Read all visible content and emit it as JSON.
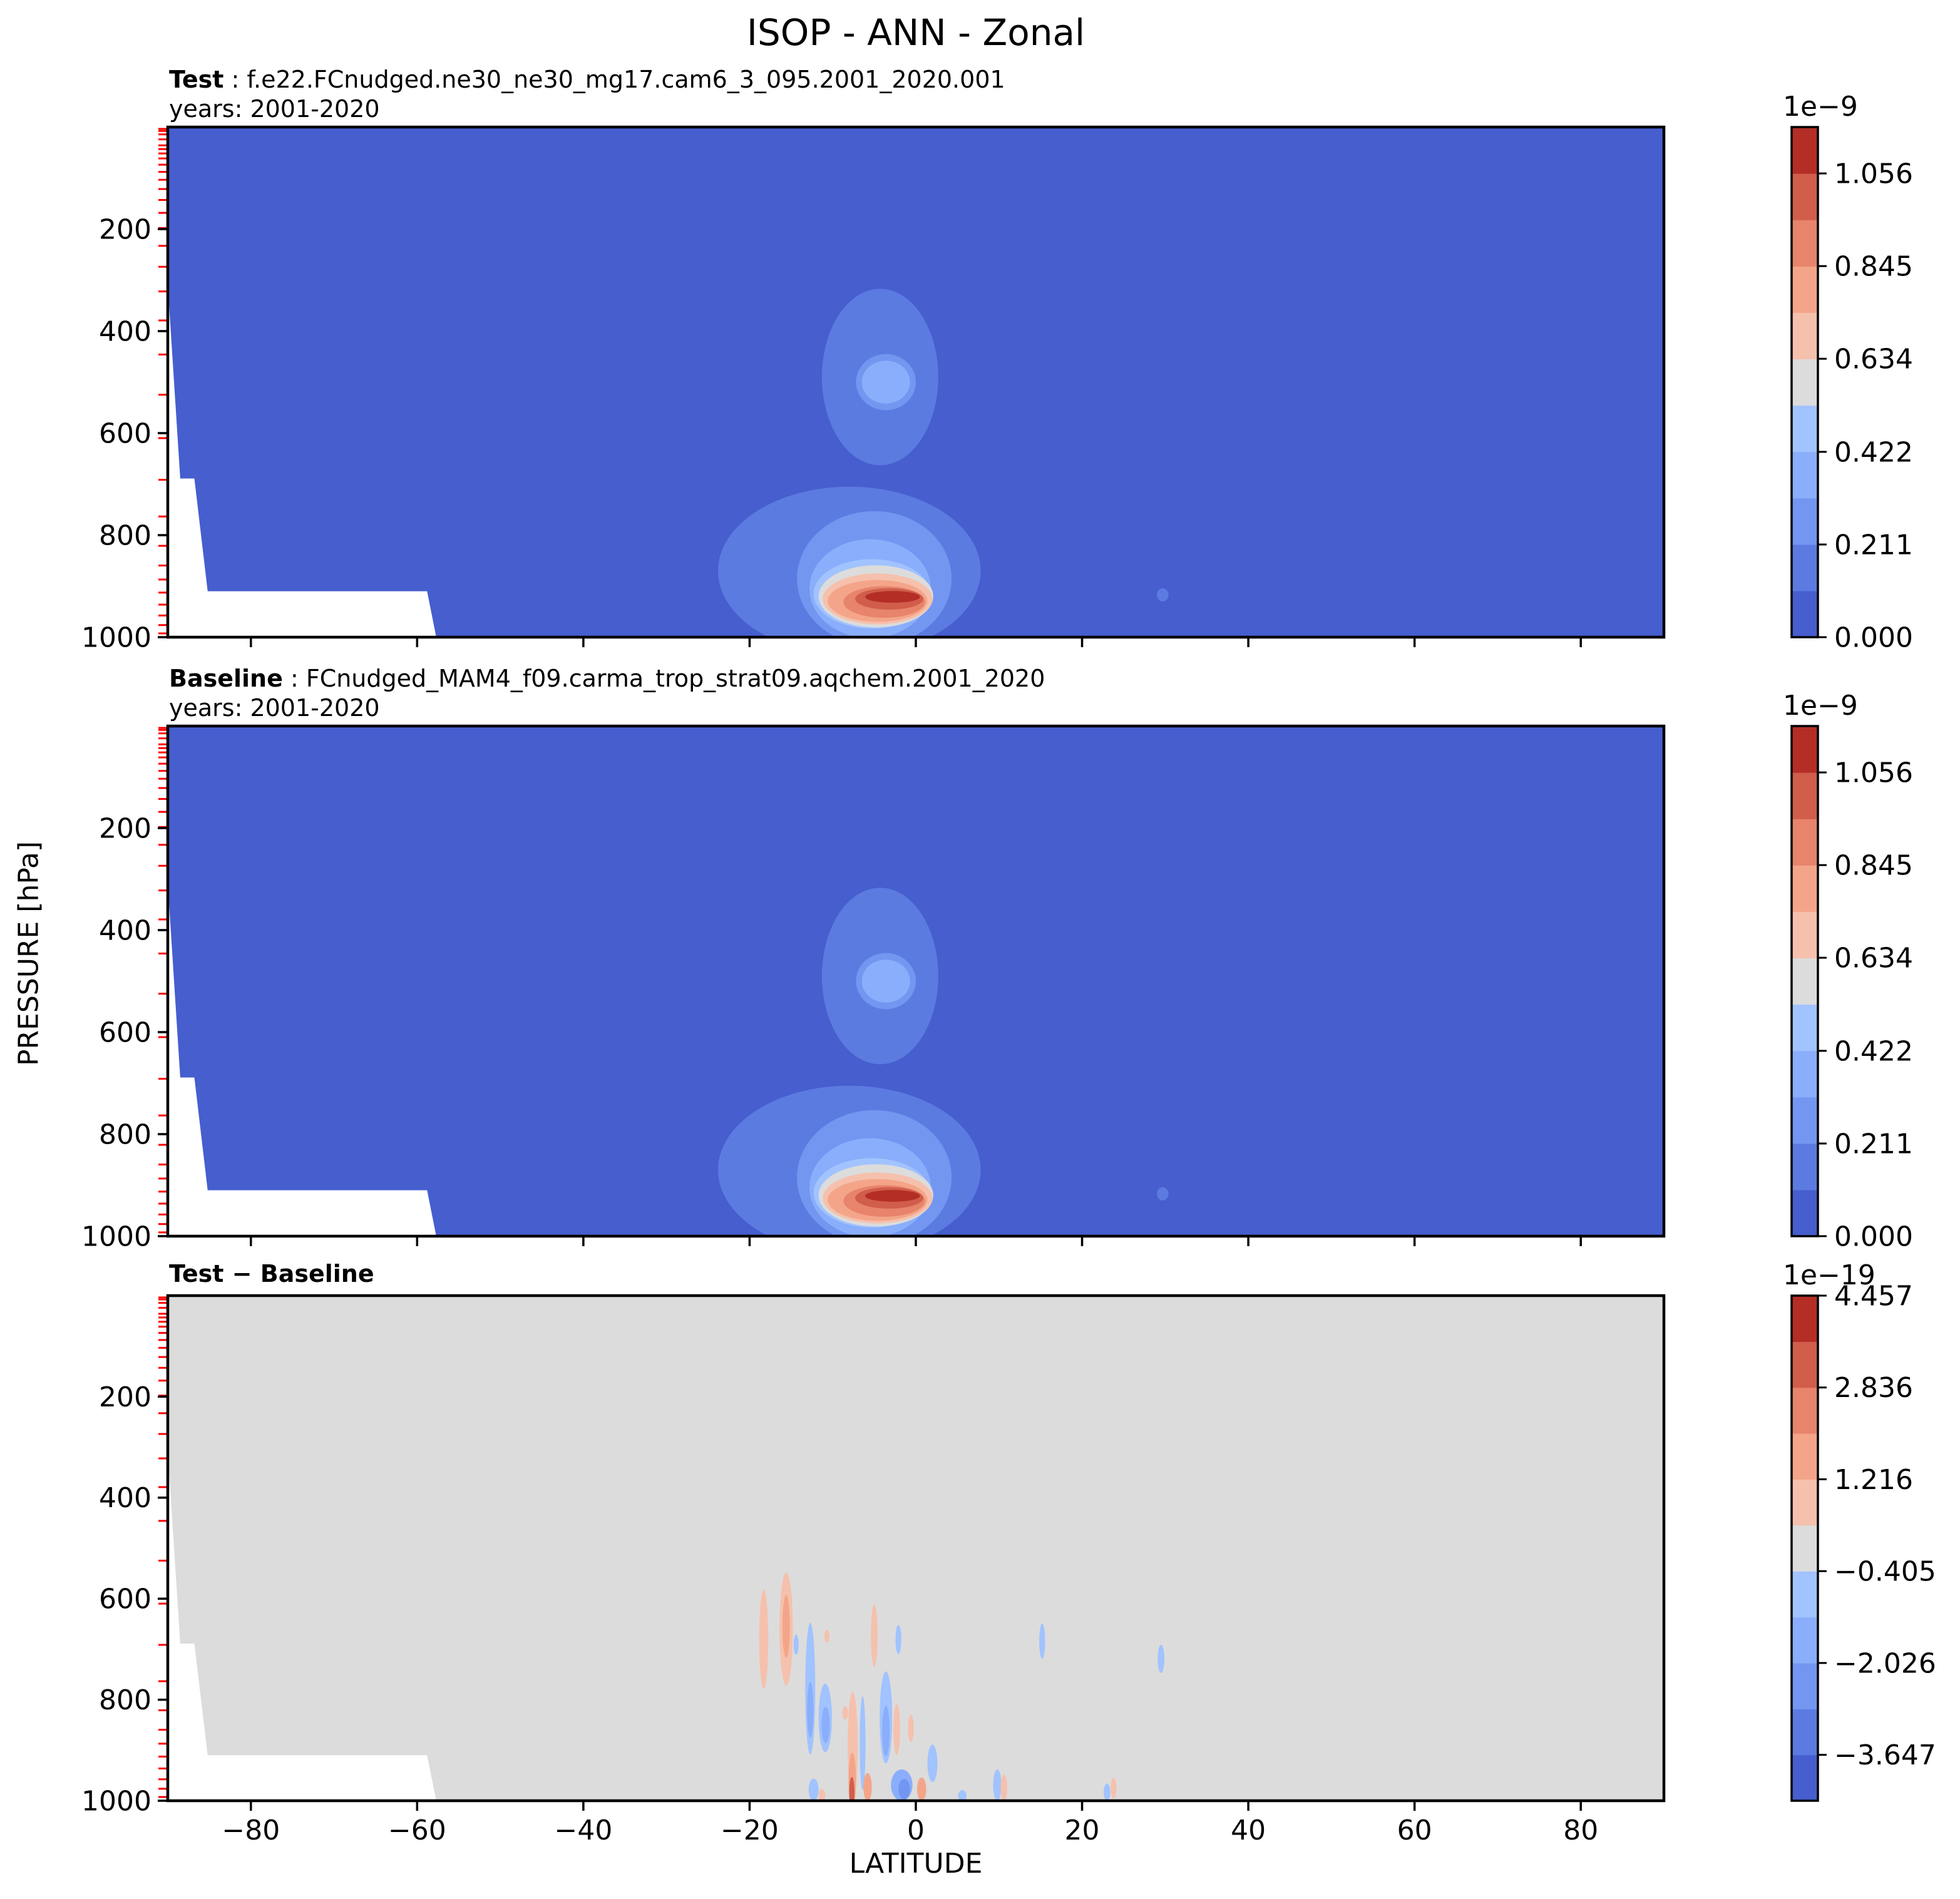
{
  "figure": {
    "title": "ISOP - ANN - Zonal"
  },
  "axes": {
    "x_label": "LATITUDE",
    "y_label": "PRESSURE [hPa]",
    "x_tick_labels": [
      "−80",
      "−60",
      "−40",
      "−20",
      "0",
      "20",
      "40",
      "60",
      "80"
    ],
    "y_tick_labels": [
      "200",
      "400",
      "600",
      "800",
      "1000"
    ]
  },
  "panels": [
    {
      "label_bold": "Test",
      "label_rest": " : f.e22.FCnudged.ne30_ne30_mg17.cam6_3_095.2001_2020.001",
      "subtitle": "years: 2001-2020"
    },
    {
      "label_bold": "Baseline",
      "label_rest": " : FCnudged_MAM4_f09.carma_trop_strat09.aqchem.2001_2020",
      "subtitle": "years: 2001-2020"
    },
    {
      "label_bold": "Test − Baseline",
      "label_rest": "",
      "subtitle": ""
    }
  ],
  "chart_data": {
    "type": "heatmap",
    "title": "ISOP - ANN - Zonal",
    "xlabel": "LATITUDE",
    "ylabel": "PRESSURE [hPa]",
    "x_range": [
      -90,
      90
    ],
    "x_ticks": [
      -80,
      -60,
      -40,
      -20,
      0,
      20,
      40,
      60,
      80
    ],
    "y_range": [
      0,
      1000
    ],
    "y_ticks": [
      200,
      400,
      600,
      800,
      1000
    ],
    "colormap": "coolwarm-discrete-11",
    "colormap_colors": [
      "#465ece",
      "#5c7be1",
      "#7396f1",
      "#8aaefb",
      "#a1c3ff",
      "#dcdcdc",
      "#f5c1ad",
      "#f4a589",
      "#e7846b",
      "#d15d4b",
      "#b42e26"
    ],
    "model_level_pressures_hpa": [
      3.6,
      7.6,
      14.3,
      24.1,
      35.9,
      43.2,
      51.7,
      61.5,
      73.8,
      87.8,
      103.3,
      121.5,
      142.9,
      168.2,
      197.9,
      232.8,
      273.9,
      322.2,
      379.1,
      445.9,
      524.7,
      609.8,
      691.4,
      763.4,
      820.9,
      859.5,
      887.0,
      912.6,
      936.2,
      957.5,
      976.3,
      992.6
    ],
    "terrain_mask_polygon_lat_p": [
      [
        -90,
        309
      ],
      [
        -88.5,
        689
      ],
      [
        -86.8,
        689
      ],
      [
        -85.2,
        910
      ],
      [
        -58.8,
        910
      ],
      [
        -57.7,
        1000
      ],
      [
        -90,
        1000
      ]
    ],
    "colorbars": [
      {
        "exponent": "1e−9",
        "vmin": 0,
        "vmax": 1.1616,
        "tick_values": [
          1.056,
          0.845,
          0.634,
          0.422,
          0.211,
          0.0
        ],
        "tick_labels": [
          "1.056",
          "0.845",
          "0.634",
          "0.422",
          "0.211",
          "0.000"
        ]
      },
      {
        "exponent": "1e−9",
        "vmin": 0,
        "vmax": 1.1616,
        "tick_values": [
          1.056,
          0.845,
          0.634,
          0.422,
          0.211,
          0.0
        ],
        "tick_labels": [
          "1.056",
          "0.845",
          "0.634",
          "0.422",
          "0.211",
          "0.000"
        ]
      },
      {
        "exponent": "1e−19",
        "vmin": -4.457,
        "vmax": 4.457,
        "tick_values": [
          4.457,
          2.836,
          1.216,
          -0.405,
          -2.026,
          -3.647
        ],
        "tick_labels": [
          "4.457",
          "2.836",
          "1.216",
          "−0.405",
          "−2.026",
          "−3.647"
        ]
      }
    ],
    "panels": [
      {
        "name": "Test",
        "background_level": 0,
        "feature_set": "test_baseline_features"
      },
      {
        "name": "Baseline",
        "background_level": 0,
        "feature_set": "test_baseline_features"
      },
      {
        "name": "Test − Baseline",
        "background_level": 5,
        "feature_set": "diff_features"
      }
    ],
    "test_baseline_features": [
      {
        "kind": "ellipse",
        "lat": -4.3,
        "p": 490,
        "rx_deg": 7.0,
        "ry_hpa": 173,
        "level": 1
      },
      {
        "kind": "ellipse",
        "lat": -3.6,
        "p": 500,
        "rx_deg": 3.6,
        "ry_hpa": 55,
        "level": 2
      },
      {
        "kind": "ellipse",
        "lat": -3.6,
        "p": 500,
        "rx_deg": 2.9,
        "ry_hpa": 42,
        "level": 3
      },
      {
        "kind": "ellipse",
        "lat": -8.0,
        "p": 870,
        "rx_deg": 15.8,
        "ry_hpa": 165,
        "level": 1
      },
      {
        "kind": "ellipse",
        "lat": -5.0,
        "p": 885,
        "rx_deg": 9.3,
        "ry_hpa": 132,
        "level": 2
      },
      {
        "kind": "ellipse",
        "lat": -5.5,
        "p": 905,
        "rx_deg": 7.3,
        "ry_hpa": 97,
        "level": 3
      },
      {
        "kind": "ellipse",
        "lat": -5.3,
        "p": 915,
        "rx_deg": 7.0,
        "ry_hpa": 68,
        "level": 4
      },
      {
        "kind": "ellipse",
        "lat": -4.8,
        "p": 920,
        "rx_deg": 6.9,
        "ry_hpa": 61,
        "level": 5
      },
      {
        "kind": "ellipse",
        "lat": -4.6,
        "p": 925,
        "rx_deg": 6.6,
        "ry_hpa": 50,
        "level": 6
      },
      {
        "kind": "ellipse",
        "lat": -4.6,
        "p": 929,
        "rx_deg": 6.0,
        "ry_hpa": 41,
        "level": 7
      },
      {
        "kind": "ellipse",
        "lat": -3.8,
        "p": 931,
        "rx_deg": 4.9,
        "ry_hpa": 31,
        "level": 8
      },
      {
        "kind": "ellipse",
        "lat": -3.2,
        "p": 925,
        "rx_deg": 4.1,
        "ry_hpa": 21,
        "level": 9
      },
      {
        "kind": "ellipse",
        "lat": -2.8,
        "p": 921,
        "rx_deg": 3.3,
        "ry_hpa": 11.5,
        "level": 10
      },
      {
        "kind": "ellipse",
        "lat": 29.7,
        "p": 917,
        "rx_deg": 0.7,
        "ry_hpa": 13,
        "level": 1
      }
    ],
    "diff_features": [
      {
        "kind": "ellipse",
        "lat": -18.3,
        "p": 680,
        "rx_deg": 0.55,
        "ry_hpa": 98,
        "level": 6
      },
      {
        "kind": "ellipse",
        "lat": -15.6,
        "p": 660,
        "rx_deg": 0.8,
        "ry_hpa": 112,
        "level": 6
      },
      {
        "kind": "ellipse",
        "lat": -15.6,
        "p": 655,
        "rx_deg": 0.45,
        "ry_hpa": 62,
        "level": 7
      },
      {
        "kind": "ellipse",
        "lat": -14.4,
        "p": 691,
        "rx_deg": 0.3,
        "ry_hpa": 20,
        "level": 4
      },
      {
        "kind": "ellipse",
        "lat": -12.7,
        "p": 778,
        "rx_deg": 0.6,
        "ry_hpa": 130,
        "level": 4
      },
      {
        "kind": "ellipse",
        "lat": -12.7,
        "p": 820,
        "rx_deg": 0.38,
        "ry_hpa": 55,
        "level": 3
      },
      {
        "kind": "ellipse",
        "lat": -12.3,
        "p": 978,
        "rx_deg": 0.6,
        "ry_hpa": 22,
        "level": 4
      },
      {
        "kind": "ellipse",
        "lat": -11.3,
        "p": 989,
        "rx_deg": 0.4,
        "ry_hpa": 12,
        "level": 6
      },
      {
        "kind": "ellipse",
        "lat": -10.7,
        "p": 674,
        "rx_deg": 0.3,
        "ry_hpa": 13,
        "level": 6
      },
      {
        "kind": "ellipse",
        "lat": -10.9,
        "p": 836,
        "rx_deg": 0.8,
        "ry_hpa": 68,
        "level": 4
      },
      {
        "kind": "ellipse",
        "lat": -10.85,
        "p": 850,
        "rx_deg": 0.5,
        "ry_hpa": 36,
        "level": 3
      },
      {
        "kind": "ellipse",
        "lat": -8.5,
        "p": 826,
        "rx_deg": 0.35,
        "ry_hpa": 13,
        "level": 6
      },
      {
        "kind": "ellipse",
        "lat": -7.6,
        "p": 892,
        "rx_deg": 0.6,
        "ry_hpa": 108,
        "level": 6
      },
      {
        "kind": "ellipse",
        "lat": -7.65,
        "p": 960,
        "rx_deg": 0.45,
        "ry_hpa": 55,
        "level": 7
      },
      {
        "kind": "ellipse",
        "lat": -7.7,
        "p": 983,
        "rx_deg": 0.32,
        "ry_hpa": 30,
        "level": 9
      },
      {
        "kind": "ellipse",
        "lat": -6.4,
        "p": 886,
        "rx_deg": 0.35,
        "ry_hpa": 93,
        "level": 4
      },
      {
        "kind": "ellipse",
        "lat": -5.8,
        "p": 973,
        "rx_deg": 0.5,
        "ry_hpa": 28,
        "level": 7
      },
      {
        "kind": "ellipse",
        "lat": -5.0,
        "p": 673,
        "rx_deg": 0.4,
        "ry_hpa": 62,
        "level": 6
      },
      {
        "kind": "ellipse",
        "lat": -3.6,
        "p": 835,
        "rx_deg": 0.75,
        "ry_hpa": 91,
        "level": 4
      },
      {
        "kind": "ellipse",
        "lat": -3.6,
        "p": 862,
        "rx_deg": 0.45,
        "ry_hpa": 50,
        "level": 3
      },
      {
        "kind": "ellipse",
        "lat": -2.1,
        "p": 681,
        "rx_deg": 0.35,
        "ry_hpa": 29,
        "level": 4
      },
      {
        "kind": "ellipse",
        "lat": -2.3,
        "p": 859,
        "rx_deg": 0.4,
        "ry_hpa": 50,
        "level": 6
      },
      {
        "kind": "ellipse",
        "lat": -1.7,
        "p": 969,
        "rx_deg": 1.3,
        "ry_hpa": 31,
        "level": 3
      },
      {
        "kind": "ellipse",
        "lat": -1.4,
        "p": 977,
        "rx_deg": 0.7,
        "ry_hpa": 20,
        "level": 2
      },
      {
        "kind": "ellipse",
        "lat": -0.6,
        "p": 857,
        "rx_deg": 0.35,
        "ry_hpa": 27,
        "level": 6
      },
      {
        "kind": "ellipse",
        "lat": 0.7,
        "p": 977,
        "rx_deg": 0.55,
        "ry_hpa": 23,
        "level": 7
      },
      {
        "kind": "ellipse",
        "lat": 2.0,
        "p": 926,
        "rx_deg": 0.6,
        "ry_hpa": 37,
        "level": 4
      },
      {
        "kind": "ellipse",
        "lat": 5.6,
        "p": 990,
        "rx_deg": 0.5,
        "ry_hpa": 11,
        "level": 4
      },
      {
        "kind": "ellipse",
        "lat": 9.8,
        "p": 969,
        "rx_deg": 0.5,
        "ry_hpa": 31,
        "level": 4
      },
      {
        "kind": "ellipse",
        "lat": 10.6,
        "p": 974,
        "rx_deg": 0.4,
        "ry_hpa": 26,
        "level": 6
      },
      {
        "kind": "ellipse",
        "lat": 15.2,
        "p": 684,
        "rx_deg": 0.35,
        "ry_hpa": 35,
        "level": 4
      },
      {
        "kind": "ellipse",
        "lat": 23.0,
        "p": 983,
        "rx_deg": 0.4,
        "ry_hpa": 17,
        "level": 4
      },
      {
        "kind": "ellipse",
        "lat": 23.8,
        "p": 975,
        "rx_deg": 0.35,
        "ry_hpa": 21,
        "level": 6
      },
      {
        "kind": "ellipse",
        "lat": 29.5,
        "p": 719,
        "rx_deg": 0.4,
        "ry_hpa": 28,
        "level": 4
      }
    ]
  }
}
